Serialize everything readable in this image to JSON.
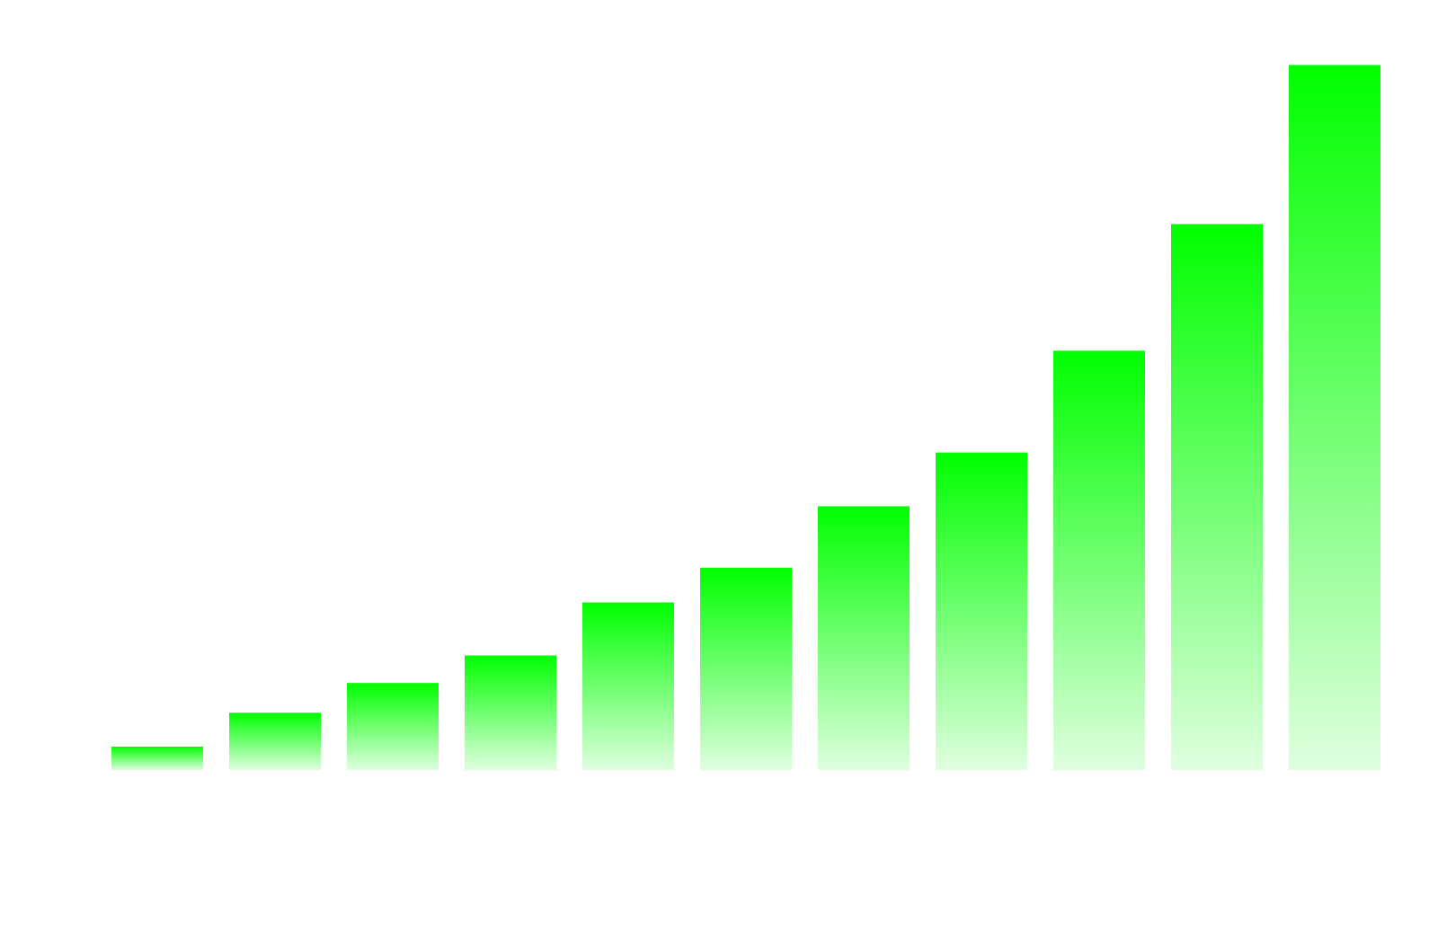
{
  "chart_data": {
    "type": "bar",
    "title": "",
    "xlabel": "",
    "ylabel": "",
    "categories": [
      "",
      "",
      "",
      "",
      "",
      "",
      "",
      "",
      "",
      "",
      ""
    ],
    "values": [
      3.3,
      8.1,
      12.3,
      16.2,
      23.7,
      28.6,
      37.3,
      44.9,
      59.3,
      77.2,
      99.7
    ],
    "ylim": [
      0,
      100
    ],
    "grid": false,
    "legend": "none",
    "axes_visible": false
  },
  "colors": {
    "bar_top": "#00ff00",
    "bar_bottom": "#dfffdf",
    "background": "#ffffff"
  }
}
